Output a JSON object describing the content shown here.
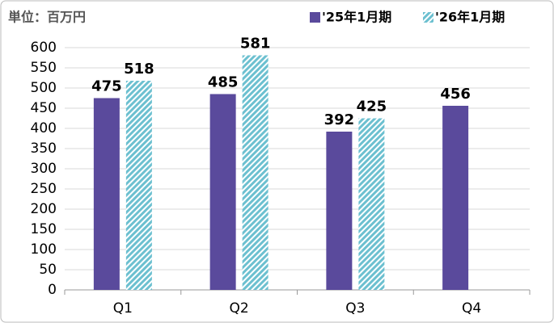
{
  "chart_data": {
    "type": "bar",
    "title": "単位：百万円",
    "categories": [
      "Q1",
      "Q2",
      "Q3",
      "Q4"
    ],
    "series": [
      {
        "name": "'25年1月期",
        "color": "#5a4a9c",
        "values": [
          475,
          485,
          392,
          456
        ]
      },
      {
        "name": "'26年1月期",
        "color": "#6cc0d0",
        "hatch": true,
        "values": [
          518,
          581,
          425,
          null
        ]
      }
    ],
    "ylim": [
      0,
      600
    ],
    "yticks": [
      0,
      50,
      100,
      150,
      200,
      250,
      300,
      350,
      400,
      450,
      500,
      550,
      600
    ],
    "grid": true
  }
}
